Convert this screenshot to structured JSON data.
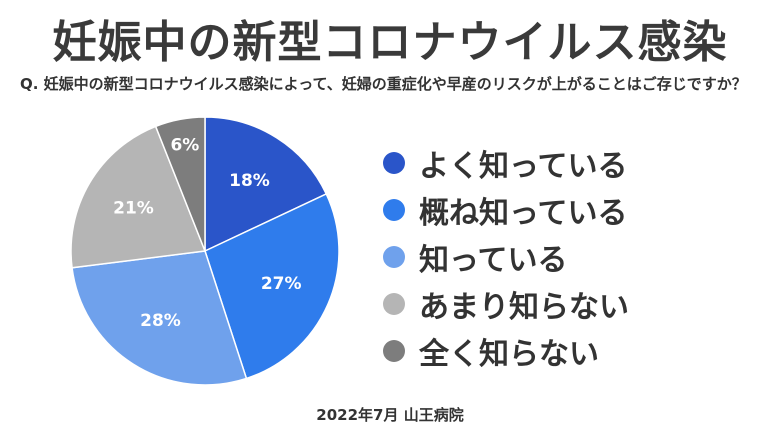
{
  "title": "妊娠中の新型コロナウイルス感染",
  "question": "Q. 妊娠中の新型コロナウイルス感染によって、妊婦の重症化や早産のリスクが上がることはご存じですか？",
  "source": "2022年7月 山王病院",
  "chart_data": {
    "type": "pie",
    "title": "妊娠中の新型コロナウイルス感染",
    "legend_position": "right",
    "slices": [
      {
        "label": "よく知っている",
        "value": 18,
        "display": "18%",
        "color": "#2a55c9"
      },
      {
        "label": "概ね知っている",
        "value": 27,
        "display": "27%",
        "color": "#2f7cec"
      },
      {
        "label": "知っている",
        "value": 28,
        "display": "28%",
        "color": "#6fa1ec"
      },
      {
        "label": "あまり知らない",
        "value": 21,
        "display": "21%",
        "color": "#b5b5b5"
      },
      {
        "label": "全く知らない",
        "value": 6,
        "display": "6%",
        "color": "#7d7d7d"
      }
    ],
    "label_color": "#ffffff"
  }
}
